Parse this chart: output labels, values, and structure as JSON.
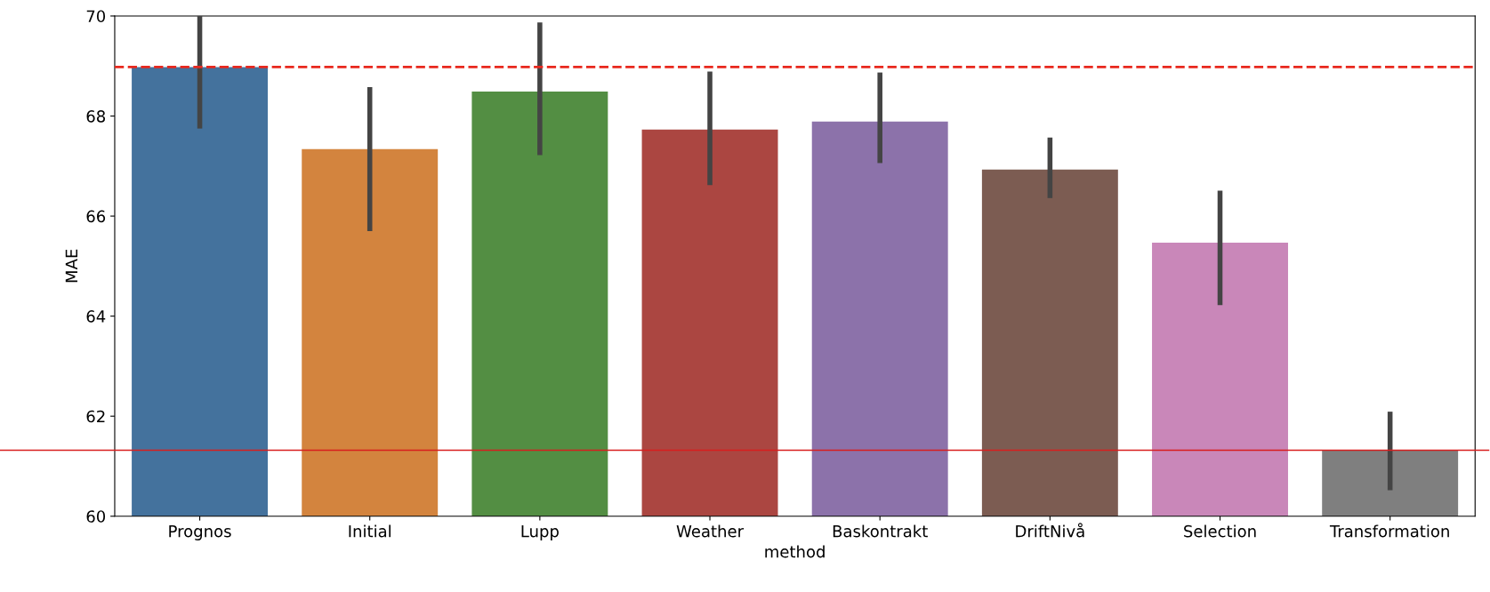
{
  "chart_data": {
    "type": "bar",
    "xlabel": "method",
    "ylabel": "MAE",
    "categories": [
      "Prognos",
      "Initial",
      "Lupp",
      "Weather",
      "Baskontrakt",
      "DriftNivå",
      "Selection",
      "Transformation"
    ],
    "values": [
      68.98,
      67.34,
      68.49,
      67.73,
      67.89,
      66.93,
      65.47,
      61.32
    ],
    "colors": [
      "#44729d",
      "#d3843e",
      "#538e43",
      "#ab4641",
      "#8c72aa",
      "#7c5c52",
      "#c987b9",
      "#7f7f7f"
    ],
    "errors": [
      [
        67.75,
        70
      ],
      [
        65.7,
        68.58
      ],
      [
        67.22,
        69.87
      ],
      [
        66.62,
        68.89
      ],
      [
        67.06,
        68.87
      ],
      [
        66.36,
        67.57
      ],
      [
        64.22,
        66.51
      ],
      [
        60.52,
        62.09
      ]
    ],
    "ylim": [
      60,
      70
    ],
    "yticks": [
      60,
      62,
      64,
      66,
      68,
      70
    ],
    "ref_lines": [
      {
        "axis": "y",
        "value": 68.98,
        "color": "#e8281e",
        "line_style": "dashed"
      },
      {
        "axis": "y",
        "value": 61.32,
        "color": "#d81e1e",
        "line_style": "solid"
      }
    ],
    "grid": false,
    "legend": false
  }
}
